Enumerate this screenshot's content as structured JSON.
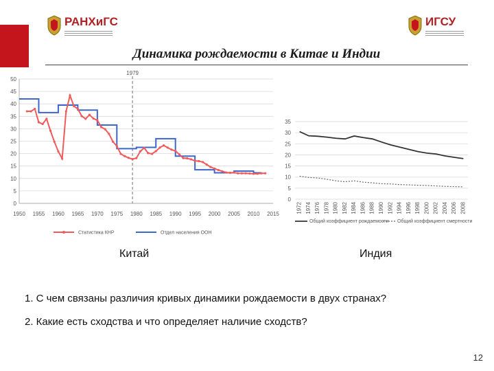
{
  "header": {
    "logo_left": "РАНХиГС",
    "logo_right": "ИГСУ",
    "title": "Динамика рождаемости в Китае и Индии"
  },
  "colors": {
    "accent": "#c4141c",
    "china_stats": "#f05a5a",
    "china_un": "#3d66cc",
    "india": "#333333"
  },
  "chart_data": [
    {
      "type": "line",
      "caption": "Китай",
      "annotation": "1979",
      "ylim": [
        0,
        50
      ],
      "xlim": [
        1950,
        2015
      ],
      "yticks": [
        0,
        5,
        10,
        15,
        20,
        25,
        30,
        35,
        40,
        45,
        50
      ],
      "xticks": [
        1950,
        1955,
        1960,
        1965,
        1970,
        1975,
        1980,
        1985,
        1990,
        1995,
        2000,
        2005,
        2010,
        2015
      ],
      "grid": true,
      "legend_position": "bottom",
      "series": [
        {
          "name": "Статистика КНР",
          "style": "line-markers",
          "x": [
            1952,
            1953,
            1954,
            1955,
            1956,
            1957,
            1958,
            1959,
            1960,
            1961,
            1962,
            1963,
            1964,
            1965,
            1966,
            1967,
            1968,
            1969,
            1970,
            1971,
            1972,
            1973,
            1974,
            1975,
            1976,
            1977,
            1978,
            1979,
            1980,
            1981,
            1982,
            1983,
            1984,
            1985,
            1986,
            1987,
            1988,
            1989,
            1990,
            1991,
            1992,
            1993,
            1994,
            1995,
            1996,
            1997,
            1998,
            1999,
            2000,
            2001,
            2002,
            2003,
            2004,
            2005,
            2006,
            2007,
            2008,
            2009,
            2010,
            2011,
            2012,
            2013
          ],
          "values": [
            37,
            37,
            38,
            32.6,
            31.9,
            34,
            29.2,
            24.8,
            20.9,
            18,
            37,
            43.4,
            39.1,
            38,
            35.1,
            34,
            35.6,
            34.1,
            33.4,
            30.7,
            29.8,
            27.9,
            24.8,
            23,
            19.9,
            19,
            18.3,
            17.8,
            18.2,
            20.9,
            22.3,
            20.2,
            19.9,
            21,
            22.4,
            23.3,
            22.4,
            21.6,
            21.1,
            19.7,
            18.2,
            18.1,
            17.7,
            17.1,
            17,
            16.6,
            15.6,
            14.6,
            14,
            13.4,
            12.9,
            12.4,
            12.3,
            12.4,
            12.1,
            12.1,
            12.1,
            12,
            11.9,
            11.9,
            12.1,
            12.1
          ]
        },
        {
          "name": "Отдел населения ООН",
          "style": "step",
          "x": [
            1950,
            1955,
            1960,
            1965,
            1970,
            1975,
            1980,
            1985,
            1990,
            1995,
            2000,
            2005,
            2010
          ],
          "values": [
            42,
            36.5,
            39.5,
            37.5,
            31.5,
            22,
            22.5,
            26,
            19,
            13.5,
            12.3,
            13,
            12.3
          ]
        }
      ]
    },
    {
      "type": "line",
      "caption": "Индия",
      "ylim": [
        0,
        35
      ],
      "yticks": [
        0,
        5,
        10,
        15,
        20,
        25,
        30,
        35
      ],
      "xticks": [
        "1972",
        "1974",
        "1976",
        "1978",
        "1980",
        "1982",
        "1984",
        "1986",
        "1988",
        "1990",
        "1992",
        "1994",
        "1996",
        "1998",
        "2000",
        "2002",
        "2004",
        "2006",
        "2008"
      ],
      "grid": true,
      "legend_position": "bottom",
      "series": [
        {
          "name": "Общий коэффициент рождаемости",
          "style": "solid",
          "x": [
            1972,
            1974,
            1976,
            1978,
            1980,
            1982,
            1984,
            1986,
            1988,
            1990,
            1992,
            1994,
            1996,
            1998,
            2000,
            2002,
            2004,
            2006,
            2008
          ],
          "values": [
            30.5,
            28.6,
            28.4,
            28,
            27.5,
            27.2,
            28.5,
            27.8,
            27.2,
            25.8,
            24.5,
            23.5,
            22.5,
            21.5,
            20.8,
            20.4,
            19.5,
            18.9,
            18.3
          ]
        },
        {
          "name": "Общий коэффициент смертности",
          "style": "dotted",
          "x": [
            1972,
            1974,
            1976,
            1978,
            1980,
            1982,
            1984,
            1986,
            1988,
            1990,
            1992,
            1994,
            1996,
            1998,
            2000,
            2002,
            2004,
            2006,
            2008
          ],
          "values": [
            10.4,
            9.8,
            9.6,
            9,
            8.3,
            7.9,
            8.3,
            7.7,
            7.4,
            7,
            6.9,
            6.6,
            6.5,
            6.3,
            6.2,
            6,
            5.8,
            5.7,
            5.6
          ]
        }
      ]
    }
  ],
  "questions": [
    "1. С чем связаны различия кривых динамики рождаемости в двух странах?",
    "2. Какие есть сходства и что определяет наличие сходств?"
  ],
  "page_number": "12"
}
